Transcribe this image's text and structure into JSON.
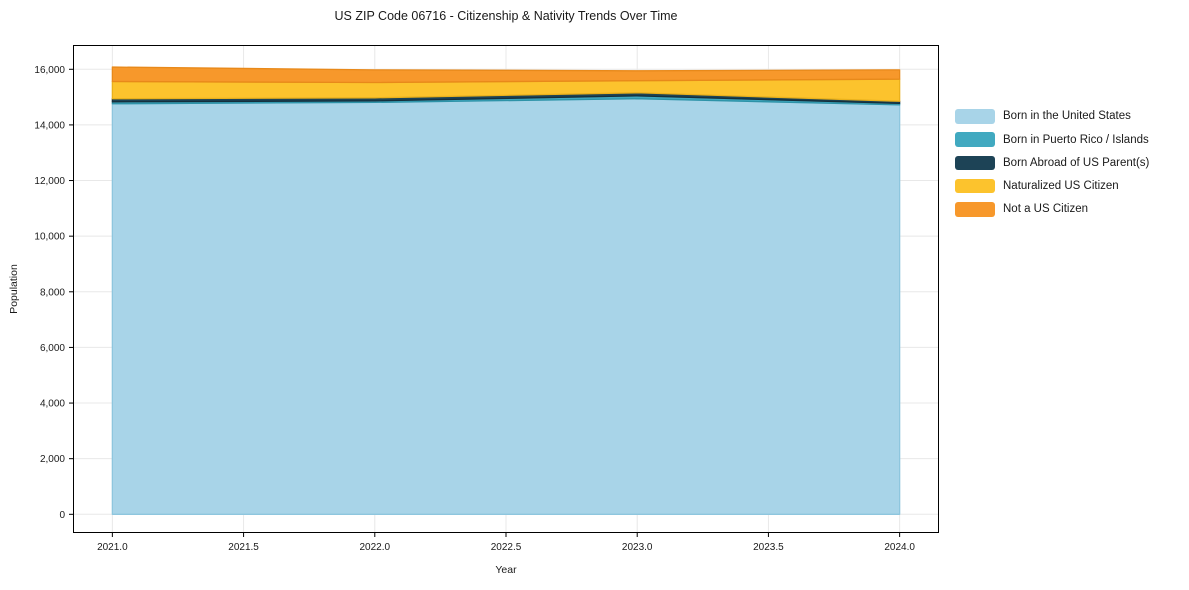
{
  "title": "US ZIP Code 06716 - Citizenship & Nativity Trends Over Time",
  "axes": {
    "x_label": "Year",
    "y_label": "Population",
    "x_tick_values": [
      2021,
      2021.5,
      2022,
      2022.5,
      2023,
      2023.5,
      2024
    ],
    "x_tick_labels": [
      "2021.0",
      "2021.5",
      "2022.0",
      "2022.5",
      "2023.0",
      "2023.5",
      "2024.0"
    ],
    "y_tick_values": [
      0,
      2000,
      4000,
      6000,
      8000,
      10000,
      12000,
      14000,
      16000
    ],
    "y_tick_labels": [
      "0",
      "2,000",
      "4,000",
      "6,000",
      "8,000",
      "10,000",
      "12,000",
      "14,000",
      "16,000"
    ]
  },
  "colors": {
    "grid": "#e8e8e8",
    "spine": "#000000",
    "text": "#1a1a1a",
    "background": "#ffffff"
  },
  "chart_data": {
    "type": "area",
    "stacked": true,
    "title": "US ZIP Code 06716 - Citizenship & Nativity Trends Over Time",
    "xlabel": "Year",
    "ylabel": "Population",
    "x": [
      2021,
      2022,
      2023,
      2024
    ],
    "series": [
      {
        "name": "Born in the United States",
        "values": [
          14760,
          14810,
          14940,
          14720
        ],
        "color": "#a8d4e8",
        "edge": "#8ec6de"
      },
      {
        "name": "Born in Puerto Rico / Islands",
        "values": [
          70,
          55,
          105,
          55
        ],
        "color": "#41a9c0",
        "edge": "#2e93a8"
      },
      {
        "name": "Born Abroad of US Parent(s)",
        "values": [
          110,
          110,
          110,
          75
        ],
        "color": "#1d4356",
        "edge": "#152f3c"
      },
      {
        "name": "Naturalized US Citizen",
        "values": [
          620,
          550,
          435,
          795
        ],
        "color": "#fcc32d",
        "edge": "#eab11c"
      },
      {
        "name": "Not a US Citizen",
        "values": [
          520,
          455,
          355,
          335
        ],
        "color": "#f7982b",
        "edge": "#e8891a"
      }
    ],
    "xlim": [
      2020.85,
      2024.15
    ],
    "ylim": [
      -672,
      16873
    ],
    "grid": true,
    "legend_position": "right"
  }
}
